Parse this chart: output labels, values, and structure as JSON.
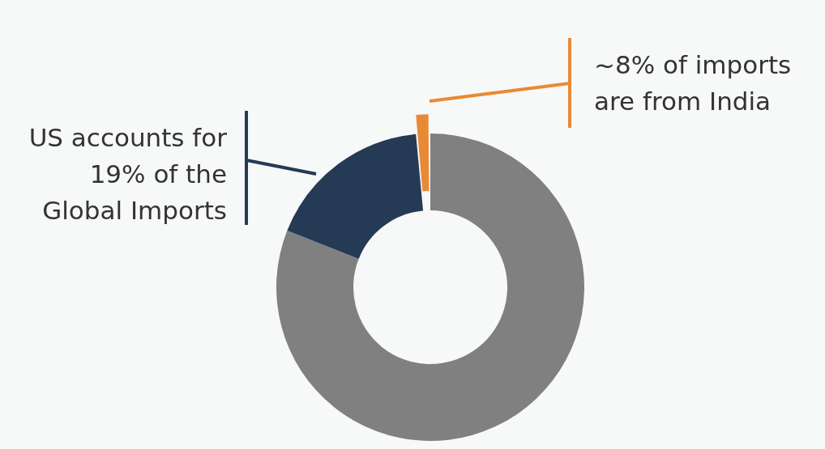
{
  "chart_data": {
    "type": "donut",
    "categories": [
      null,
      null,
      null
    ],
    "values": [
      81,
      17.5,
      1.5
    ],
    "colors": [
      "#808080",
      "#253a54",
      "#e88a35"
    ],
    "annotations": [
      "US accounts for 19% of the Global Imports",
      "~8% of imports are from India"
    ],
    "legend": false
  }
}
